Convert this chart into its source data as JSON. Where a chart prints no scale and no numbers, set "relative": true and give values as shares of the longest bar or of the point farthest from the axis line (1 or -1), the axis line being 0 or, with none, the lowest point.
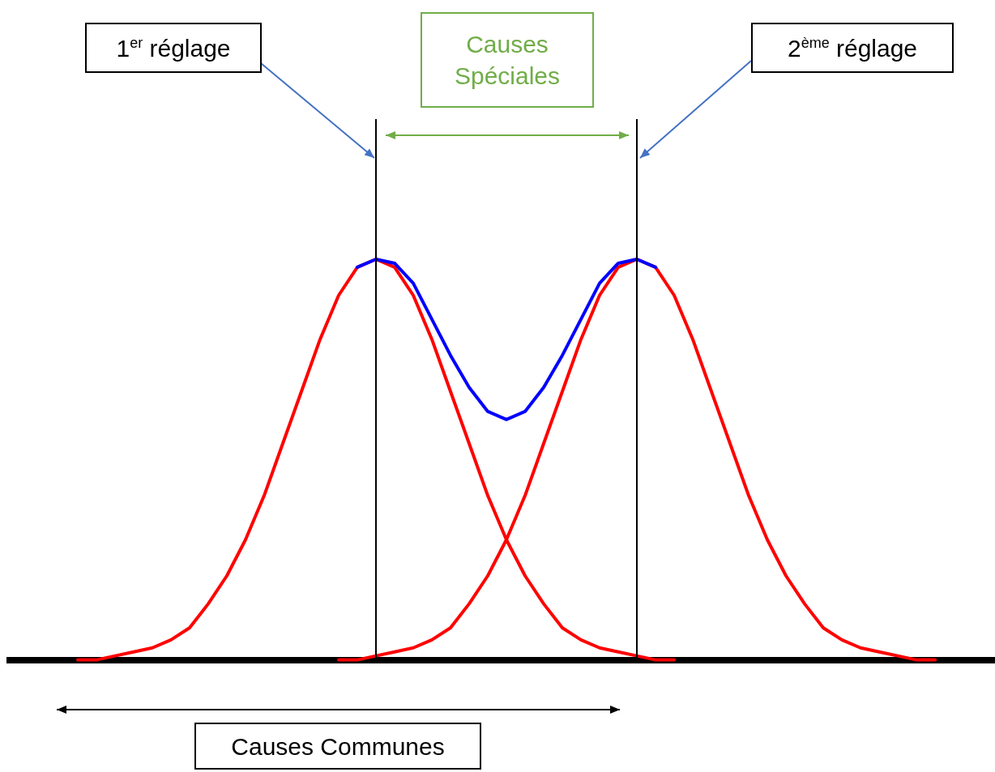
{
  "chart_data": {
    "type": "line",
    "relative": true,
    "categories": [
      null,
      null,
      null,
      null,
      null,
      null,
      null,
      null,
      null,
      null,
      null,
      null,
      null,
      null,
      null,
      null,
      null,
      null,
      null,
      null,
      null,
      null,
      null,
      null,
      null,
      null,
      null,
      null,
      null,
      null,
      null,
      null,
      null,
      null,
      null,
      null,
      null,
      null,
      null,
      null,
      null,
      null,
      null,
      null,
      null,
      null,
      null
    ],
    "legend": false,
    "marker": "none",
    "line_style": "solid",
    "series": [
      {
        "color": "#ff0000",
        "values": [
          0,
          0,
          0.01,
          0.02,
          0.03,
          0.05,
          0.08,
          0.14,
          0.21,
          0.3,
          0.41,
          0.54,
          0.67,
          0.8,
          0.91,
          0.98,
          1,
          0.98,
          0.91,
          0.8,
          0.67,
          0.54,
          0.41,
          0.3,
          0.21,
          0.14,
          0.08,
          0.05,
          0.03,
          0.02,
          0.01,
          0,
          0,
          null,
          null,
          null,
          null,
          null,
          null,
          null,
          null,
          null,
          null,
          null,
          null,
          null,
          null
        ]
      },
      {
        "color": "#ff0000",
        "values": [
          null,
          null,
          null,
          null,
          null,
          null,
          null,
          null,
          null,
          null,
          null,
          null,
          null,
          null,
          0,
          0,
          0.01,
          0.02,
          0.03,
          0.05,
          0.08,
          0.14,
          0.21,
          0.3,
          0.41,
          0.54,
          0.67,
          0.8,
          0.91,
          0.98,
          1,
          0.98,
          0.91,
          0.8,
          0.67,
          0.54,
          0.41,
          0.3,
          0.21,
          0.14,
          0.08,
          0.05,
          0.03,
          0.02,
          0.01,
          0,
          0
        ]
      },
      {
        "color": "#0000ff",
        "values": [
          null,
          null,
          null,
          null,
          null,
          null,
          null,
          null,
          null,
          null,
          null,
          null,
          null,
          null,
          null,
          0.98,
          1,
          0.99,
          0.94,
          0.85,
          0.76,
          0.68,
          0.62,
          0.6,
          0.62,
          0.68,
          0.76,
          0.85,
          0.94,
          0.99,
          1,
          0.98,
          null,
          null,
          null,
          null,
          null,
          null,
          null,
          null,
          null,
          null,
          null,
          null,
          null,
          null,
          null
        ]
      }
    ],
    "annotations": [
      "1$^{er}$ réglage",
      "Causes Spéciales",
      "2$^{ème}$ réglage",
      "Causes Communes"
    ]
  }
}
